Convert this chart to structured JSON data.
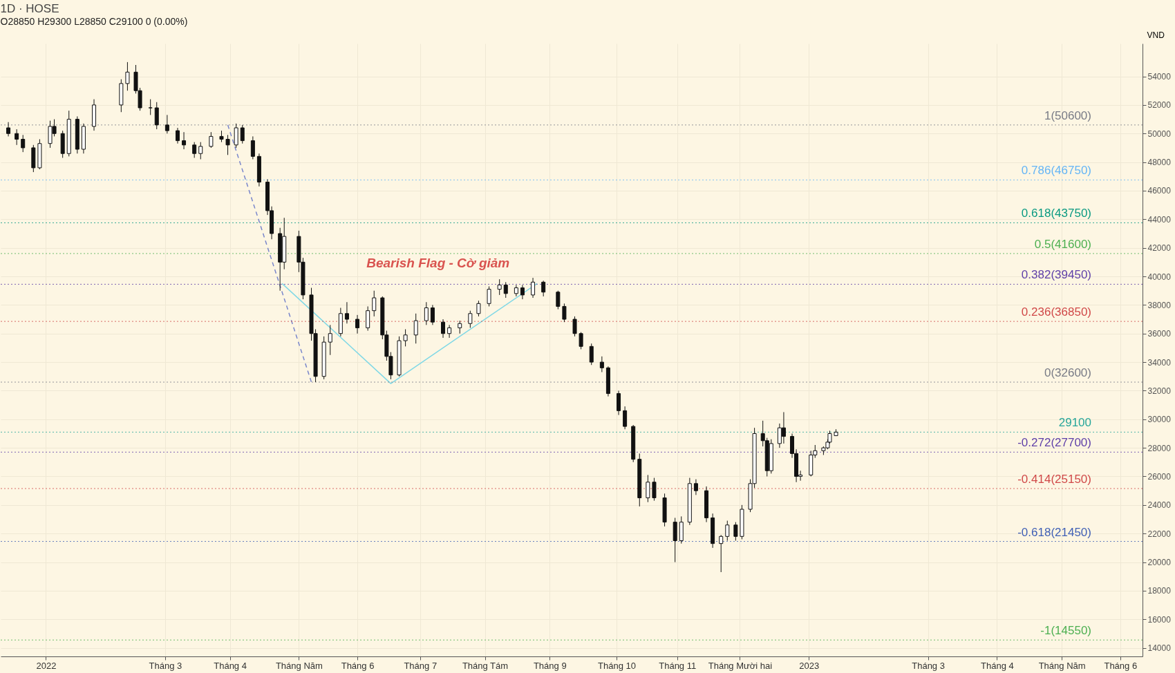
{
  "chart_data": {
    "type": "candlestick",
    "title": "1D · HOSE",
    "subtitle": "O28850 H29300 L28850 C29100 0 (0.00%)",
    "ylabel": "VND",
    "x": [
      "2021-12-16",
      "2021-12-20",
      "2021-12-23",
      "2021-12-28",
      "2021-12-31",
      "2022-01-05",
      "2022-01-07",
      "2022-01-11",
      "2022-01-14",
      "2022-01-18",
      "2022-01-21",
      "2022-01-26",
      "2022-02-08",
      "2022-02-11",
      "2022-02-15",
      "2022-02-17",
      "2022-02-22",
      "2022-02-25",
      "2022-03-02",
      "2022-03-07",
      "2022-03-10",
      "2022-03-15",
      "2022-03-18",
      "2022-03-23",
      "2022-03-28",
      "2022-03-31",
      "2022-04-04",
      "2022-04-07",
      "2022-04-12",
      "2022-04-15",
      "2022-04-19",
      "2022-04-21",
      "2022-04-25",
      "2022-04-27",
      "2022-05-04",
      "2022-05-06",
      "2022-05-10",
      "2022-05-12",
      "2022-05-16",
      "2022-05-19",
      "2022-05-24",
      "2022-05-27",
      "2022-06-01",
      "2022-06-06",
      "2022-06-09",
      "2022-06-13",
      "2022-06-15",
      "2022-06-17",
      "2022-06-21",
      "2022-06-24",
      "2022-06-29",
      "2022-07-04",
      "2022-07-07",
      "2022-07-12",
      "2022-07-15",
      "2022-07-20",
      "2022-07-25",
      "2022-07-29",
      "2022-08-03",
      "2022-08-08",
      "2022-08-11",
      "2022-08-16",
      "2022-08-19",
      "2022-08-24",
      "2022-08-29",
      "2022-09-05",
      "2022-09-08",
      "2022-09-13",
      "2022-09-16",
      "2022-09-21",
      "2022-09-26",
      "2022-09-29",
      "2022-10-04",
      "2022-10-07",
      "2022-10-11",
      "2022-10-14",
      "2022-10-18",
      "2022-10-21",
      "2022-10-26",
      "2022-10-31",
      "2022-11-03",
      "2022-11-07",
      "2022-11-10",
      "2022-11-15",
      "2022-11-18",
      "2022-11-22",
      "2022-11-25",
      "2022-11-29",
      "2022-12-02",
      "2022-12-06",
      "2022-12-08",
      "2022-12-12",
      "2022-12-14",
      "2022-12-16",
      "2022-12-20",
      "2022-12-22",
      "2022-12-26",
      "2022-12-28",
      "2022-12-30",
      "2023-01-04",
      "2023-01-06",
      "2023-01-10",
      "2023-01-12",
      "2023-01-13",
      "2023-01-16"
    ],
    "ohlc": [
      [
        50400,
        50800,
        49800,
        50000
      ],
      [
        50000,
        50300,
        49200,
        49600
      ],
      [
        49600,
        49900,
        48700,
        49000
      ],
      [
        49000,
        49200,
        47300,
        47600
      ],
      [
        47600,
        49600,
        47500,
        49300
      ],
      [
        49300,
        50900,
        49000,
        50500
      ],
      [
        50500,
        51000,
        49800,
        50000
      ],
      [
        50000,
        50200,
        48300,
        48600
      ],
      [
        48600,
        51600,
        48400,
        51000
      ],
      [
        51000,
        51200,
        48600,
        48900
      ],
      [
        48900,
        50700,
        48600,
        50500
      ],
      [
        50500,
        52400,
        50200,
        52000
      ],
      [
        52000,
        53800,
        51500,
        53500
      ],
      [
        53500,
        55000,
        53000,
        54300
      ],
      [
        54300,
        54800,
        52800,
        53000
      ],
      [
        53000,
        53200,
        51600,
        51800
      ],
      [
        51800,
        52400,
        51300,
        51800
      ],
      [
        51800,
        52200,
        50300,
        50600
      ],
      [
        50600,
        51300,
        50000,
        50200
      ],
      [
        50200,
        50400,
        49300,
        49500
      ],
      [
        49500,
        50100,
        48900,
        49200
      ],
      [
        49200,
        49400,
        48300,
        48600
      ],
      [
        48600,
        49400,
        48200,
        49100
      ],
      [
        49100,
        50100,
        49000,
        49800
      ],
      [
        49800,
        50200,
        49400,
        49600
      ],
      [
        49600,
        49900,
        48500,
        49200
      ],
      [
        49200,
        50700,
        49000,
        50400
      ],
      [
        50400,
        50600,
        49300,
        49500
      ],
      [
        49500,
        49800,
        48200,
        48400
      ],
      [
        48400,
        48600,
        46300,
        46600
      ],
      [
        46600,
        46800,
        44300,
        44600
      ],
      [
        44600,
        44900,
        42600,
        43000
      ],
      [
        43000,
        43400,
        39000,
        41000
      ],
      [
        41000,
        44100,
        40500,
        42800
      ],
      [
        42800,
        43200,
        40300,
        41000
      ],
      [
        41000,
        41300,
        38400,
        38700
      ],
      [
        38700,
        39200,
        35500,
        36000
      ],
      [
        36000,
        36300,
        32600,
        33000
      ],
      [
        33000,
        35800,
        32800,
        35400
      ],
      [
        35400,
        36600,
        34500,
        36000
      ],
      [
        36000,
        37800,
        35800,
        37400
      ],
      [
        37400,
        38200,
        36700,
        37000
      ],
      [
        37000,
        37300,
        36000,
        36400
      ],
      [
        36400,
        37900,
        36200,
        37600
      ],
      [
        37600,
        39000,
        37200,
        38500
      ],
      [
        38500,
        38600,
        35600,
        35900
      ],
      [
        35900,
        36200,
        34100,
        34400
      ],
      [
        34400,
        34700,
        32800,
        33100
      ],
      [
        33100,
        35800,
        33000,
        35500
      ],
      [
        35500,
        36300,
        35100,
        35900
      ],
      [
        35900,
        37400,
        35300,
        36900
      ],
      [
        36900,
        38200,
        36600,
        37800
      ],
      [
        37800,
        38000,
        36600,
        36800
      ],
      [
        36800,
        37000,
        35700,
        36000
      ],
      [
        36000,
        36600,
        35700,
        36400
      ],
      [
        36400,
        36900,
        36000,
        36700
      ],
      [
        36700,
        37600,
        36400,
        37400
      ],
      [
        37400,
        38300,
        37200,
        38100
      ],
      [
        38100,
        39300,
        37900,
        39100
      ],
      [
        39100,
        39800,
        38700,
        39400
      ],
      [
        39400,
        39600,
        38500,
        38800
      ],
      [
        38800,
        39400,
        38600,
        39200
      ],
      [
        39200,
        39400,
        38400,
        38700
      ],
      [
        38700,
        39900,
        38500,
        39600
      ],
      [
        39600,
        39700,
        38600,
        38900
      ],
      [
        38900,
        39000,
        37700,
        37900
      ],
      [
        37900,
        38100,
        36800,
        37000
      ],
      [
        37000,
        37200,
        35800,
        36000
      ],
      [
        36000,
        36100,
        34900,
        35100
      ],
      [
        35100,
        35300,
        33800,
        34000
      ],
      [
        34000,
        34400,
        33300,
        33600
      ],
      [
        33600,
        33700,
        31600,
        31800
      ],
      [
        31800,
        32000,
        30300,
        30600
      ],
      [
        30600,
        30900,
        29300,
        29500
      ],
      [
        29500,
        29600,
        27000,
        27200
      ],
      [
        27200,
        27600,
        23900,
        24500
      ],
      [
        24500,
        26100,
        24200,
        25600
      ],
      [
        25600,
        25900,
        24300,
        24500
      ],
      [
        24500,
        24800,
        22500,
        22800
      ],
      [
        22800,
        23100,
        20000,
        21500
      ],
      [
        21500,
        23200,
        21300,
        22800
      ],
      [
        22800,
        25900,
        22600,
        25500
      ],
      [
        25500,
        25800,
        24700,
        25000
      ],
      [
        25000,
        25300,
        22800,
        23100
      ],
      [
        23100,
        23400,
        21000,
        21300
      ],
      [
        21300,
        21900,
        19300,
        21800
      ],
      [
        21800,
        22900,
        21500,
        22600
      ],
      [
        22600,
        22800,
        21500,
        21800
      ],
      [
        21800,
        24000,
        21600,
        23700
      ],
      [
        23700,
        25800,
        23500,
        25500
      ],
      [
        25500,
        29400,
        25200,
        29000
      ],
      [
        29000,
        29900,
        28100,
        28500
      ],
      [
        28500,
        28700,
        26000,
        26400
      ],
      [
        26400,
        28600,
        26200,
        28300
      ],
      [
        28300,
        29700,
        28000,
        29400
      ],
      [
        29400,
        30500,
        28300,
        28800
      ],
      [
        28800,
        29000,
        27300,
        27600
      ],
      [
        27600,
        27900,
        25600,
        26000
      ],
      [
        26000,
        26400,
        25700,
        26100
      ],
      [
        26100,
        27800,
        26000,
        27500
      ],
      [
        27500,
        28200,
        27300,
        27800
      ],
      [
        27800,
        28100,
        27500,
        28000
      ],
      [
        28000,
        28600,
        27900,
        28400
      ],
      [
        28400,
        29200,
        28300,
        29000
      ],
      [
        28850,
        29300,
        28850,
        29100
      ]
    ],
    "series": [
      {
        "type": "line",
        "color": "#7fd8e6",
        "x": [
          "2022-04-26",
          "2022-06-17",
          "2022-08-26",
          "2022-04-26"
        ],
        "values": [
          39500,
          32500,
          39500,
          39500
        ]
      },
      {
        "type": "line",
        "color": "#7986cb",
        "line_style": "dashed",
        "x": [
          "2022-03-31",
          "2022-05-10"
        ],
        "values": [
          50600,
          32600
        ]
      }
    ],
    "xlim": [
      "2021-12-14",
      "2023-06-10"
    ],
    "xticks": [
      {
        "value": "2022-01-03",
        "label": "2022"
      },
      {
        "value": "2022-03-01",
        "label": "Tháng 3"
      },
      {
        "value": "2022-04-01",
        "label": "Tháng 4"
      },
      {
        "value": "2022-05-04",
        "label": "Tháng Năm"
      },
      {
        "value": "2022-06-01",
        "label": "Tháng 6"
      },
      {
        "value": "2022-07-01",
        "label": "Tháng 7"
      },
      {
        "value": "2022-08-01",
        "label": "Tháng Tám"
      },
      {
        "value": "2022-09-01",
        "label": "Tháng 9"
      },
      {
        "value": "2022-10-03",
        "label": "Tháng 10"
      },
      {
        "value": "2022-11-01",
        "label": "Tháng 11"
      },
      {
        "value": "2022-12-01",
        "label": "Tháng Mười hai"
      },
      {
        "value": "2023-01-03",
        "label": "2023"
      },
      {
        "value": "2023-03-01",
        "label": "Tháng 3"
      },
      {
        "value": "2023-04-03",
        "label": "Tháng 4"
      },
      {
        "value": "2023-05-04",
        "label": "Tháng Năm"
      },
      {
        "value": "2023-06-01",
        "label": "Tháng 6"
      }
    ],
    "ylim": [
      13400,
      56300
    ],
    "yticks": [
      14000,
      16000,
      18000,
      20000,
      22000,
      24000,
      26000,
      28000,
      30000,
      32000,
      34000,
      36000,
      38000,
      40000,
      42000,
      44000,
      46000,
      48000,
      50000,
      52000,
      54000
    ],
    "grid": true,
    "ref_lines": [
      {
        "axis": "y",
        "value": 50600,
        "label": "1(50600)",
        "color": "#787b86",
        "line_style": "dotted"
      },
      {
        "axis": "y",
        "value": 46750,
        "label": "0.786(46750)",
        "color": "#64b5f6",
        "line_style": "dotted"
      },
      {
        "axis": "y",
        "value": 43750,
        "label": "0.618(43750)",
        "color": "#089981",
        "line_style": "dotted"
      },
      {
        "axis": "y",
        "value": 41600,
        "label": "0.5(41600)",
        "color": "#4caf50",
        "line_style": "dotted"
      },
      {
        "axis": "y",
        "value": 39450,
        "label": "0.382(39450)",
        "color": "#5e3fa8",
        "line_style": "dotted"
      },
      {
        "axis": "y",
        "value": 36850,
        "label": "0.236(36850)",
        "color": "#d04848",
        "line_style": "dotted"
      },
      {
        "axis": "y",
        "value": 32600,
        "label": "0(32600)",
        "color": "#787b86",
        "line_style": "dotted"
      },
      {
        "axis": "y",
        "value": 29100,
        "label": "29100",
        "color": "#26a69a",
        "line_style": "dotted"
      },
      {
        "axis": "y",
        "value": 27700,
        "label": "-0.272(27700)",
        "color": "#5e3fa8",
        "line_style": "dotted"
      },
      {
        "axis": "y",
        "value": 25150,
        "label": "-0.414(25150)",
        "color": "#d04848",
        "line_style": "dotted"
      },
      {
        "axis": "y",
        "value": 21450,
        "label": "-0.618(21450)",
        "color": "#3f5fb5",
        "line_style": "dotted"
      },
      {
        "axis": "y",
        "value": 14550,
        "label": "-1(14550)",
        "color": "#4caf50",
        "line_style": "dotted"
      }
    ],
    "annotations": [
      "Bearish Flag - Cờ giảm"
    ]
  }
}
